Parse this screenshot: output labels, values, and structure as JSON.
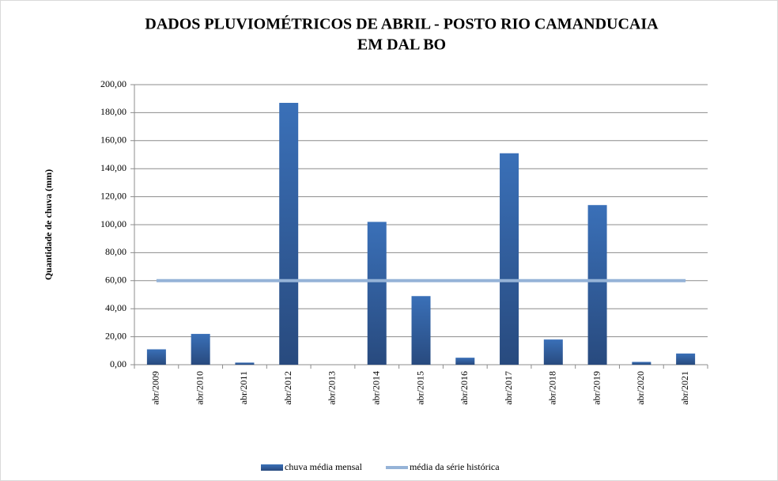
{
  "chart_data": {
    "type": "bar",
    "title": [
      "DADOS PLUVIOMÉTRICOS DE ABRIL - POSTO RIO CAMANDUCAIA",
      "EM DAL BO"
    ],
    "y_label": "Quantidade de chuva (mm)",
    "categories": [
      "abr/2009",
      "abr/2010",
      "abr/2011",
      "abr/2012",
      "abr/2013",
      "abr/2014",
      "abr/2015",
      "abr/2016",
      "abr/2017",
      "abr/2018",
      "abr/2019",
      "abr/2020",
      "abr/2021"
    ],
    "series": [
      {
        "name": "chuva média mensal",
        "type": "bar",
        "color": "#3a6fb5",
        "values": [
          11,
          22,
          1.5,
          187,
          0,
          102,
          49,
          5,
          151,
          18,
          114,
          2,
          8
        ]
      },
      {
        "name": "média da série histórica",
        "type": "line",
        "color": "#95b3d7",
        "values": [
          60,
          60,
          60,
          60,
          60,
          60,
          60,
          60,
          60,
          60,
          60,
          60,
          60
        ]
      }
    ],
    "ylim": [
      0,
      200
    ],
    "yticks": [
      {
        "value": 0,
        "label": "0,00"
      },
      {
        "value": 20,
        "label": "20,00"
      },
      {
        "value": 40,
        "label": "40,00"
      },
      {
        "value": 60,
        "label": "60,00"
      },
      {
        "value": 80,
        "label": "80,00"
      },
      {
        "value": 100,
        "label": "100,00"
      },
      {
        "value": 120,
        "label": "120,00"
      },
      {
        "value": 140,
        "label": "140,00"
      },
      {
        "value": 160,
        "label": "160,00"
      },
      {
        "value": 180,
        "label": "180,00"
      },
      {
        "value": 200,
        "label": "200,00"
      }
    ],
    "grid": true,
    "legend": "bottom"
  }
}
